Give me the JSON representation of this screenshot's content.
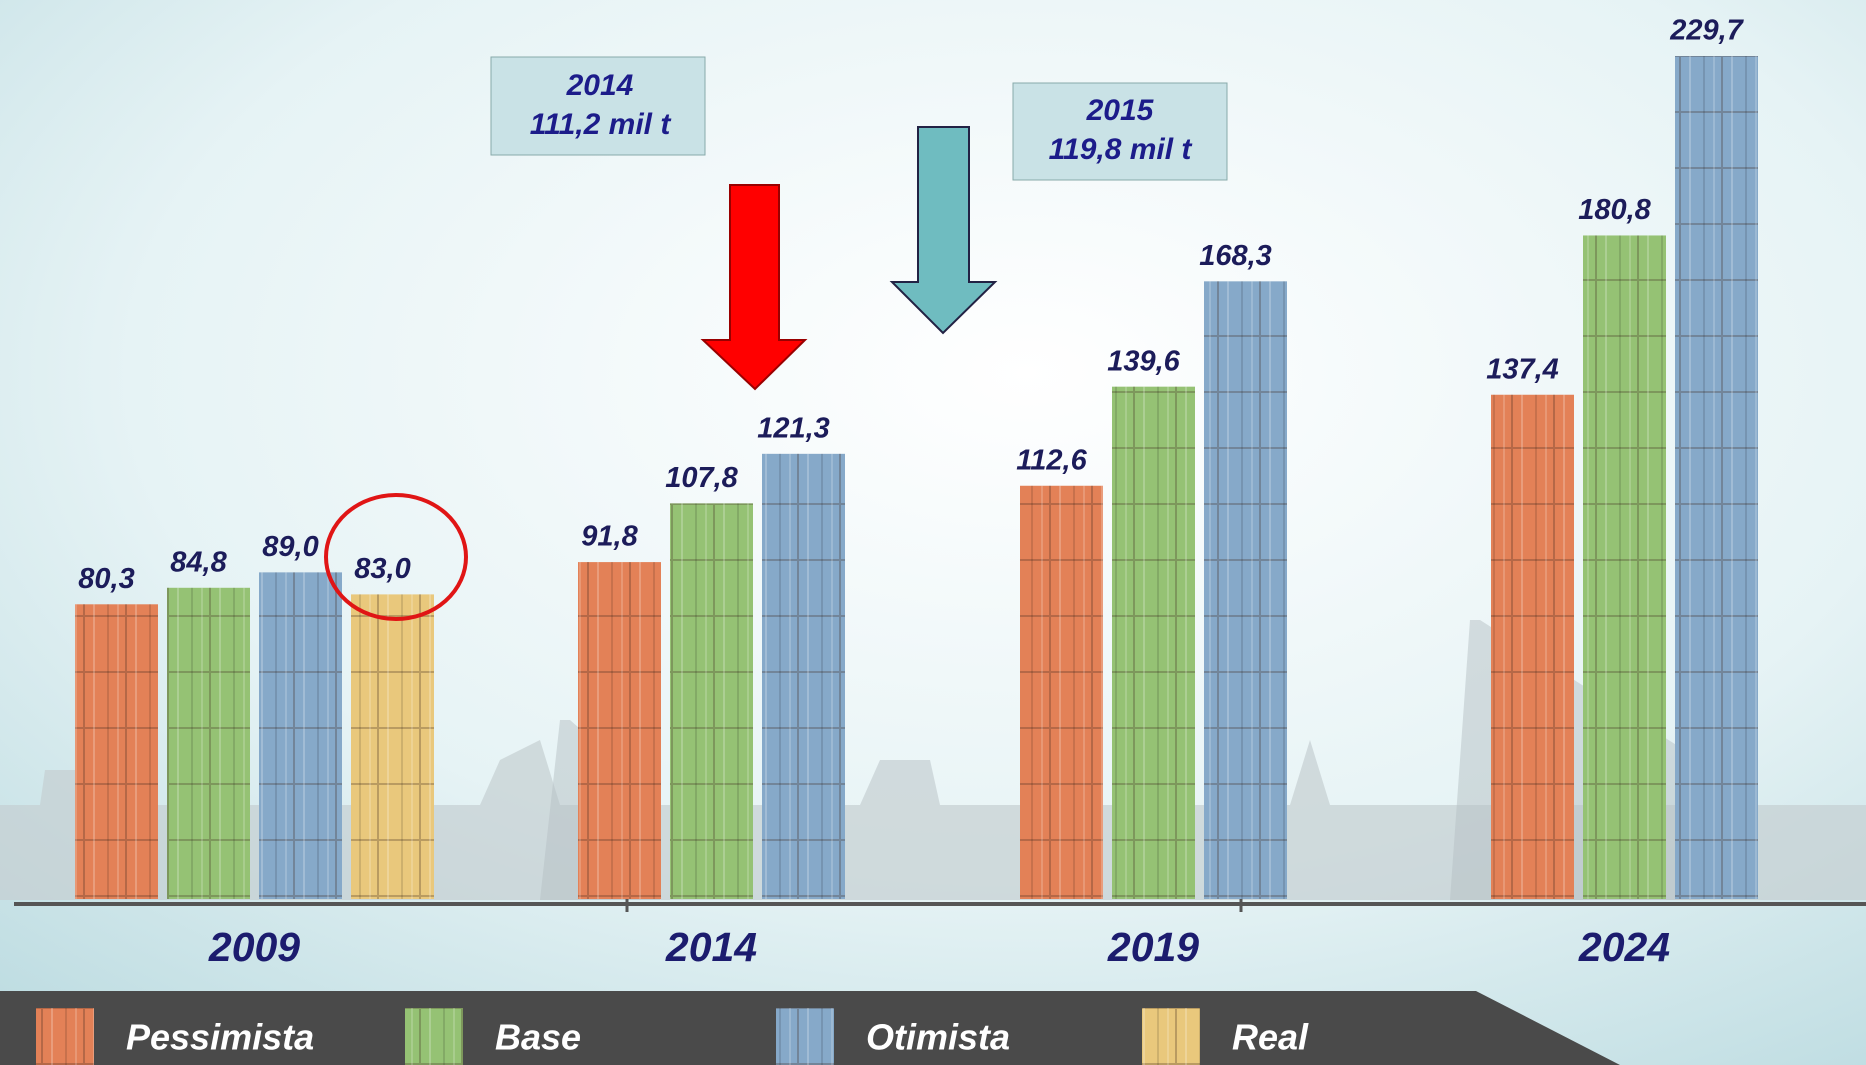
{
  "chart_data": {
    "type": "bar",
    "categories": [
      "2009",
      "2014",
      "2019",
      "2024"
    ],
    "series": [
      {
        "name": "Pessimista",
        "color": "#e38157",
        "values": [
          80.3,
          91.8,
          112.6,
          137.4
        ],
        "value_labels": [
          "80,3",
          "91,8",
          "112,6",
          "137,4"
        ]
      },
      {
        "name": "Base",
        "color": "#95c274",
        "values": [
          84.8,
          107.8,
          139.6,
          180.8
        ],
        "value_labels": [
          "84,8",
          "107,8",
          "139,6",
          "180,8"
        ]
      },
      {
        "name": "Otimista",
        "color": "#86a9c9",
        "values": [
          89.0,
          121.3,
          168.3,
          229.7
        ],
        "value_labels": [
          "89,0",
          "121,3",
          "168,3",
          "229,7"
        ]
      },
      {
        "name": "Real",
        "color": "#e9c87c",
        "values": [
          83.0,
          null,
          null,
          null
        ],
        "value_labels": [
          "83,0",
          null,
          null,
          null
        ]
      }
    ],
    "annotations": [
      {
        "title": "2014",
        "text": "111,2 mil t"
      },
      {
        "title": "2015",
        "text": "119,8 mil t"
      }
    ]
  }
}
